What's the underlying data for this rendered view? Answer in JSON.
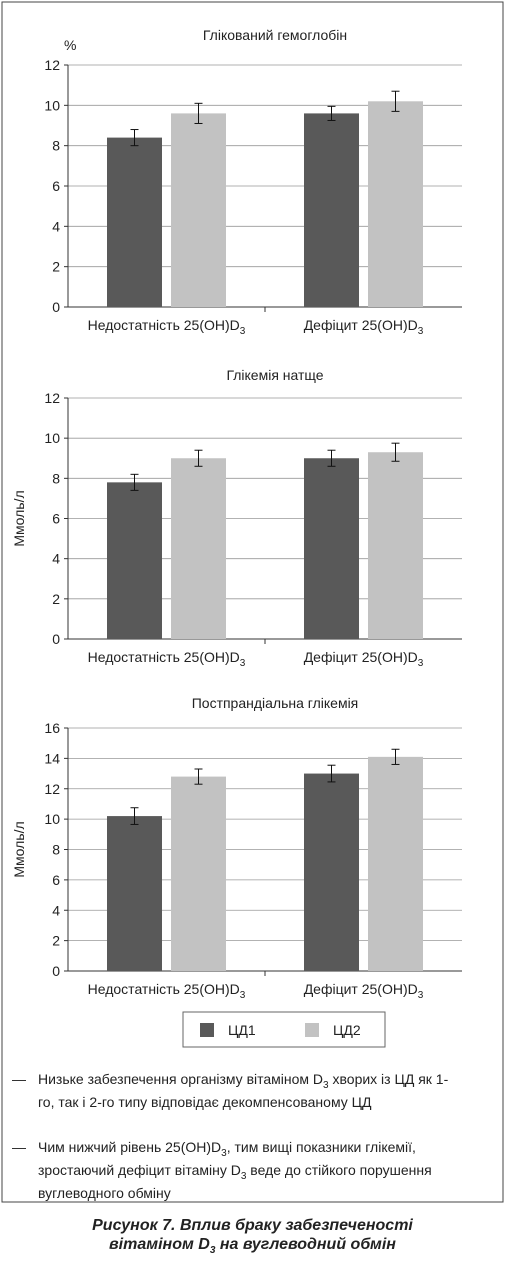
{
  "chart_data": [
    {
      "type": "bar",
      "title": "Глікований гемоглобін",
      "y_label": "%",
      "y_label_orientation": "horizontal",
      "categories": [
        [
          {
            "t": "Недостатність 25(OH)D"
          },
          {
            "sub": "3"
          }
        ],
        [
          {
            "t": "Дефіцит 25(OH)D"
          },
          {
            "sub": "3"
          }
        ]
      ],
      "series": [
        {
          "legend": 0,
          "values": [
            8.4,
            9.6
          ],
          "errors": [
            0.4,
            0.35
          ]
        },
        {
          "legend": 1,
          "values": [
            9.6,
            10.2
          ],
          "errors": [
            0.5,
            0.5
          ]
        }
      ],
      "ylim": [
        0,
        12
      ],
      "yticks": [
        0,
        2,
        4,
        6,
        8,
        10,
        12
      ],
      "grid": true
    },
    {
      "type": "bar",
      "title": "Глікемія натще",
      "y_label": "Ммоль/л",
      "y_label_orientation": "vertical",
      "categories": [
        [
          {
            "t": "Недостатність 25(OH)D"
          },
          {
            "sub": "3"
          }
        ],
        [
          {
            "t": "Дефіцит 25(OH)D"
          },
          {
            "sub": "3"
          }
        ]
      ],
      "series": [
        {
          "legend": 0,
          "values": [
            7.8,
            9.0
          ],
          "errors": [
            0.4,
            0.4
          ]
        },
        {
          "legend": 1,
          "values": [
            9.0,
            9.3
          ],
          "errors": [
            0.4,
            0.45
          ]
        }
      ],
      "ylim": [
        0,
        12
      ],
      "yticks": [
        0,
        2,
        4,
        6,
        8,
        10,
        12
      ],
      "grid": true
    },
    {
      "type": "bar",
      "title": "Постпрандіальна глікемія",
      "y_label": "Ммоль/л",
      "y_label_orientation": "vertical",
      "categories": [
        [
          {
            "t": "Недостатність 25(OH)D"
          },
          {
            "sub": "3"
          }
        ],
        [
          {
            "t": "Дефіцит 25(OH)D"
          },
          {
            "sub": "3"
          }
        ]
      ],
      "series": [
        {
          "legend": 0,
          "values": [
            10.2,
            13.0
          ],
          "errors": [
            0.55,
            0.55
          ]
        },
        {
          "legend": 1,
          "values": [
            12.8,
            14.1
          ],
          "errors": [
            0.5,
            0.5
          ]
        }
      ],
      "ylim": [
        0,
        16
      ],
      "yticks": [
        0,
        2,
        4,
        6,
        8,
        10,
        12,
        14,
        16
      ],
      "grid": true
    }
  ],
  "legend": [
    {
      "name": "ЦД1",
      "color": "#595959"
    },
    {
      "name": "ЦД2",
      "color": "#c2c2c2"
    }
  ],
  "notes": [
    {
      "dash": "—",
      "parts": [
        {
          "t": "Низьке забезпечення організму вітаміном D"
        },
        {
          "sub": "3"
        },
        {
          "t": " хворих із ЦД як 1-го, так і 2-го типу відповідає декомпенсованому ЦД"
        }
      ]
    },
    {
      "dash": "—",
      "parts": [
        {
          "t": "Чим нижчий рівень 25(OH)D"
        },
        {
          "sub": "3"
        },
        {
          "t": ", тим вищі показники глікемії, зростаючий дефіцит вітаміну D"
        },
        {
          "sub": "3"
        },
        {
          "t": " веде до стійкого порушення вуглеводного обміну"
        }
      ]
    }
  ],
  "caption": [
    {
      "t": "Рисунок 7. Вплив браку забезпеченості вітаміном D"
    },
    {
      "sub": "3"
    },
    {
      "t": " на вуглеводний обмін"
    }
  ]
}
